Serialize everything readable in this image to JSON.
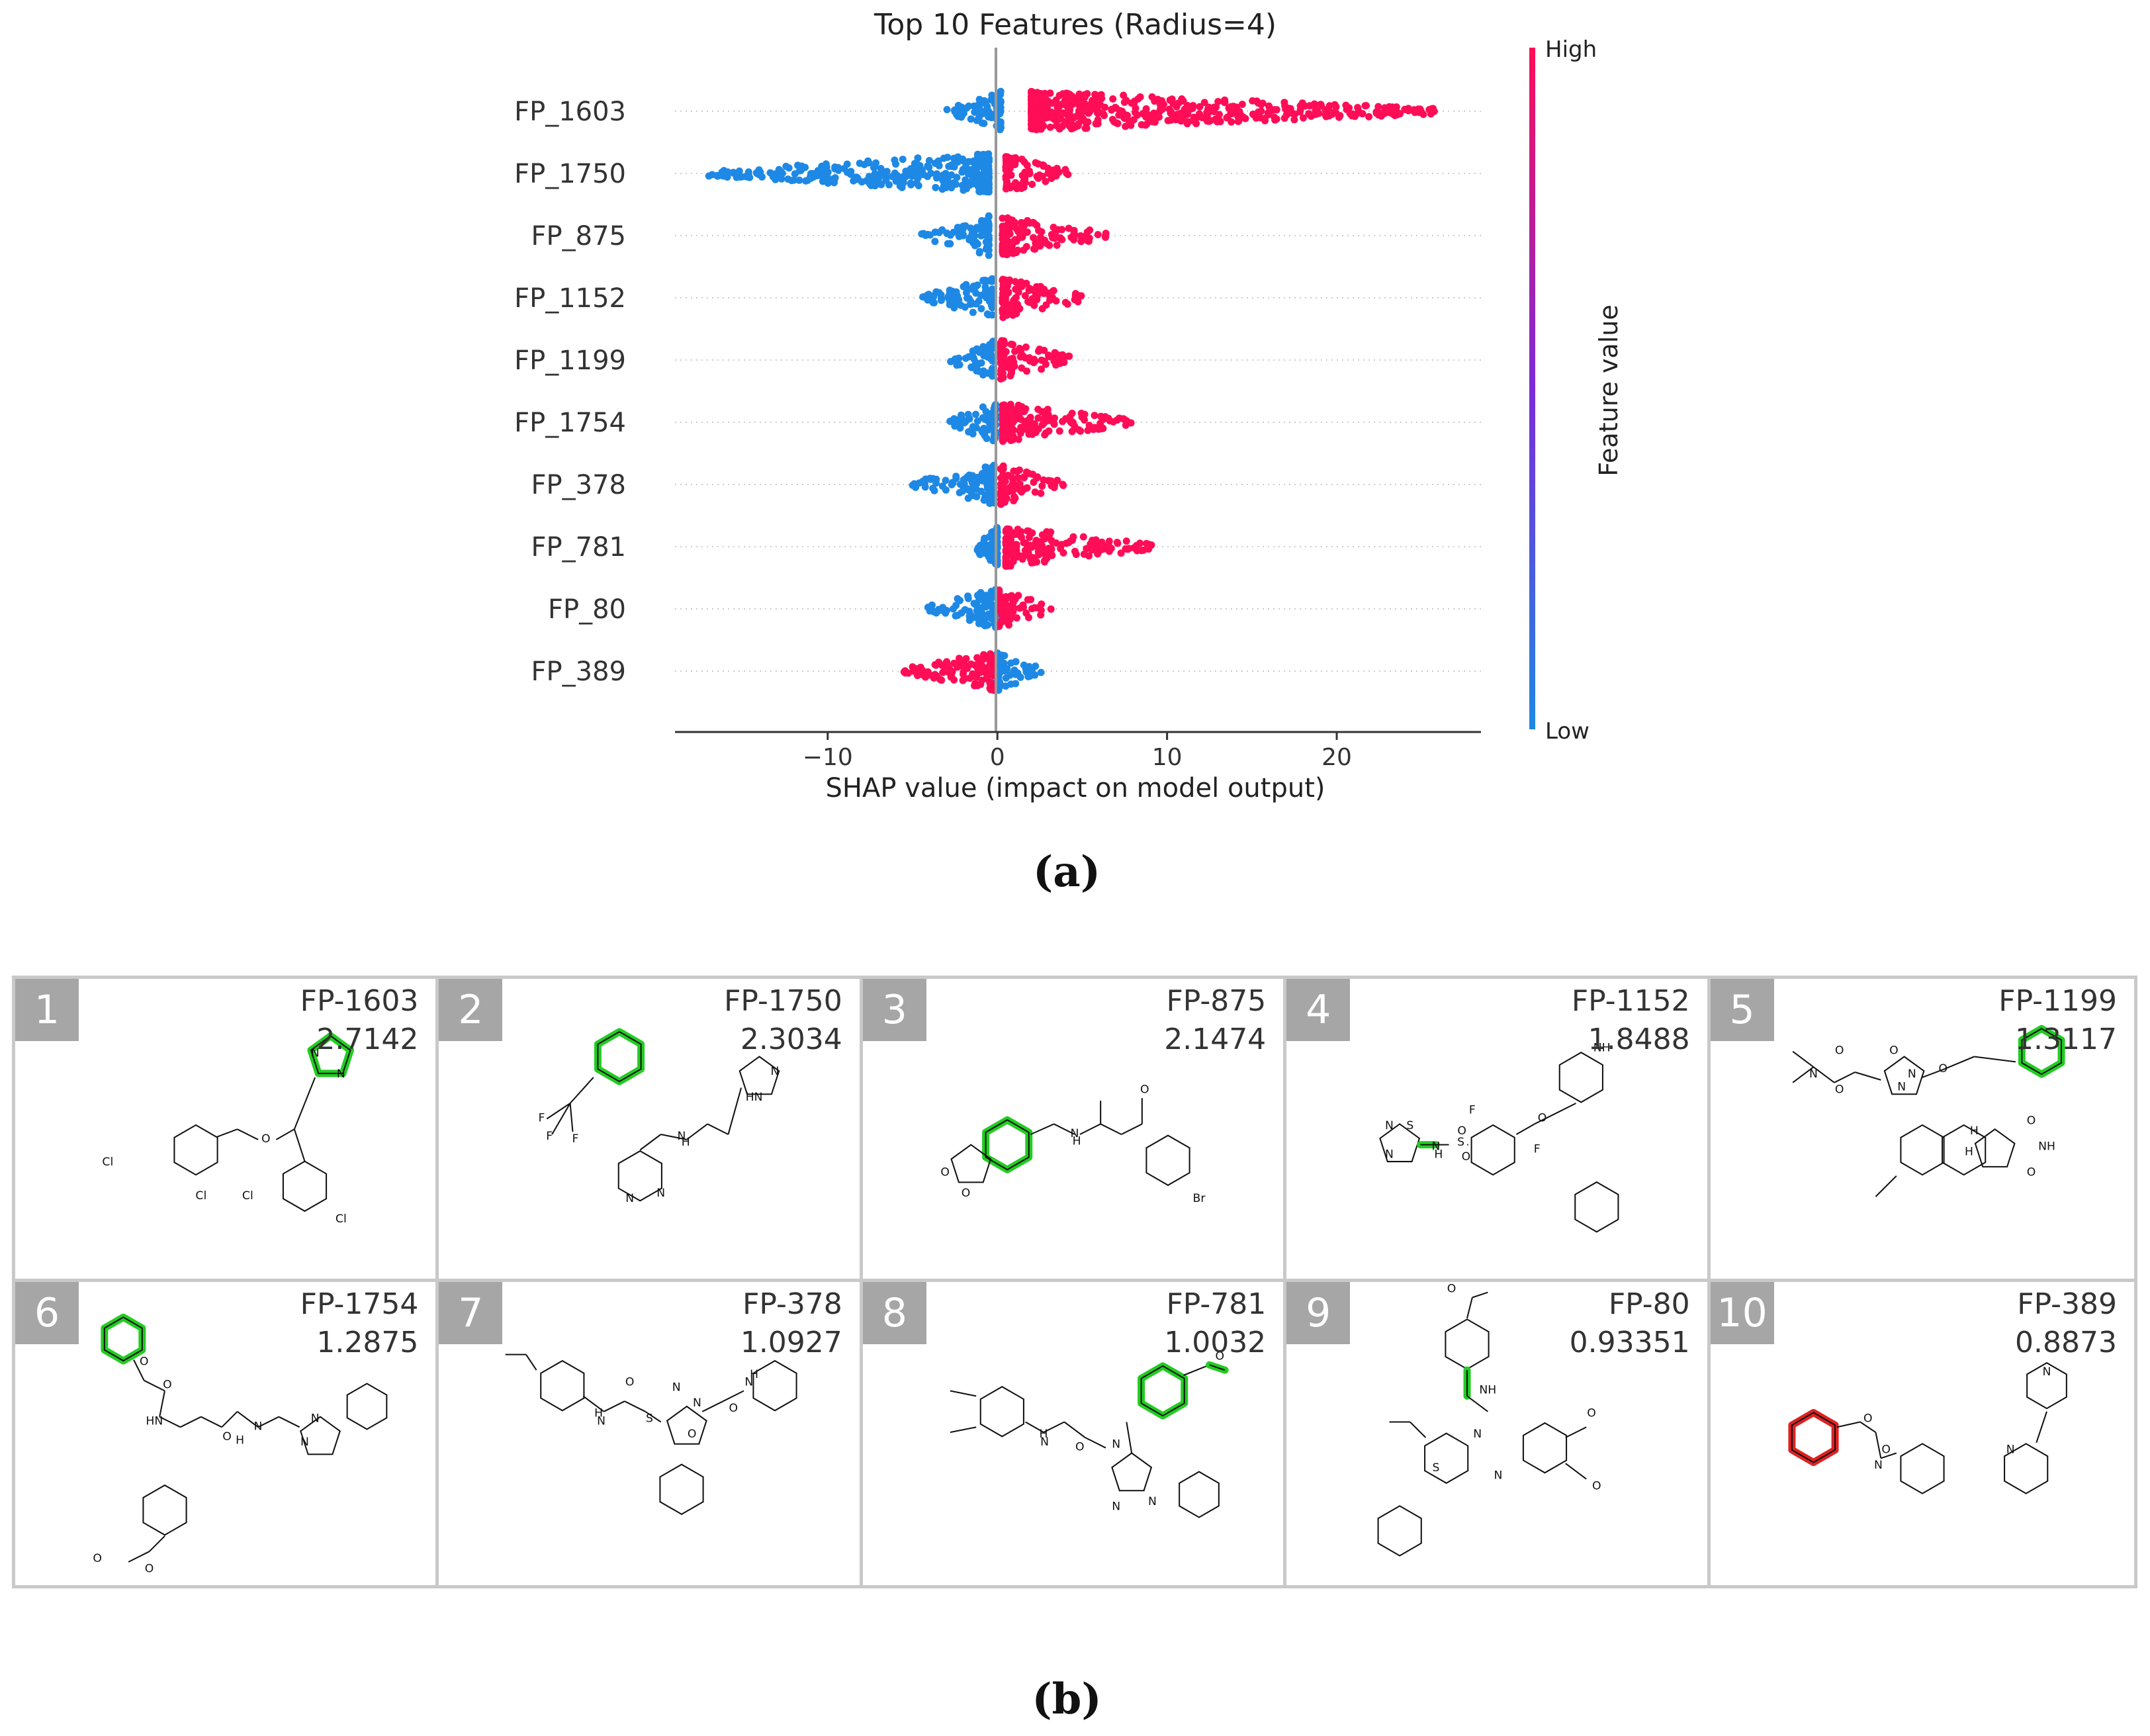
{
  "chart_data": {
    "type": "scatter",
    "subtype": "shap-beeswarm",
    "title": "Top 10 Features (Radius=4)",
    "xlabel": "SHAP value (impact on model output)",
    "xlim": [
      -19,
      28.5
    ],
    "xticks": [
      -10,
      0,
      10,
      20
    ],
    "xtick_labels": [
      "−10",
      "0",
      "10",
      "20"
    ],
    "colorbar": {
      "label": "Feature value",
      "high": "High",
      "low": "Low",
      "high_color": "#ff0d57",
      "low_color": "#1e88e5"
    },
    "features": [
      {
        "name": "FP_1603",
        "low_range": [
          -3,
          0.2
        ],
        "high_range": [
          2,
          26.0
        ]
      },
      {
        "name": "FP_1750",
        "low_range": [
          -17,
          -0.5
        ],
        "high_range": [
          0.5,
          4.3
        ]
      },
      {
        "name": "FP_875",
        "low_range": [
          -4.5,
          -0.5
        ],
        "high_range": [
          0.3,
          6.5
        ]
      },
      {
        "name": "FP_1152",
        "low_range": [
          -4.4,
          -0.3
        ],
        "high_range": [
          0.3,
          5.2
        ]
      },
      {
        "name": "FP_1199",
        "low_range": [
          -2.8,
          -0.2
        ],
        "high_range": [
          0.2,
          4.6
        ]
      },
      {
        "name": "FP_1754",
        "low_range": [
          -2.9,
          -0.1
        ],
        "high_range": [
          0.3,
          7.9
        ]
      },
      {
        "name": "FP_378",
        "low_range": [
          -5.0,
          -0.2
        ],
        "high_range": [
          0.2,
          3.9
        ]
      },
      {
        "name": "FP_781",
        "low_range": [
          -1.5,
          0.0
        ],
        "high_range": [
          0.5,
          9.2
        ]
      },
      {
        "name": "FP_80",
        "low_range": [
          -4.3,
          -0.1
        ],
        "high_range": [
          0.1,
          3.2
        ]
      },
      {
        "name": "FP_389",
        "low_range": [
          0.0,
          2.6
        ],
        "high_range": [
          -5.6,
          -0.2
        ]
      }
    ]
  },
  "panel_labels": {
    "a": "(a)",
    "b": "(b)"
  },
  "table": {
    "cells": [
      {
        "rank": "1",
        "name": "FP-1603",
        "score": "2.7142"
      },
      {
        "rank": "2",
        "name": "FP-1750",
        "score": "2.3034"
      },
      {
        "rank": "3",
        "name": "FP-875",
        "score": "2.1474"
      },
      {
        "rank": "4",
        "name": "FP-1152",
        "score": "1.8488"
      },
      {
        "rank": "5",
        "name": "FP-1199",
        "score": "1.3117"
      },
      {
        "rank": "6",
        "name": "FP-1754",
        "score": "1.2875"
      },
      {
        "rank": "7",
        "name": "FP-378",
        "score": "1.0927"
      },
      {
        "rank": "8",
        "name": "FP-781",
        "score": "1.0032"
      },
      {
        "rank": "9",
        "name": "FP-80",
        "score": "0.93351"
      },
      {
        "rank": "10",
        "name": "FP-389",
        "score": "0.8873"
      }
    ],
    "highlight_colors": {
      "positive": "#22cc22",
      "negative": "#dd2222"
    },
    "atom_labels": {
      "m1": [
        "N",
        "N",
        "O",
        "Cl",
        "Cl",
        "Cl",
        "Cl"
      ],
      "m2": [
        "F",
        "F",
        "F",
        "N",
        "N",
        "N",
        "HN",
        "N",
        "H"
      ],
      "m3": [
        "O",
        "O",
        "N",
        "H",
        "O",
        "Br"
      ],
      "m4": [
        "N",
        "S",
        "N",
        "N",
        "H",
        "S",
        "O",
        "O",
        "F",
        "F",
        "O",
        "NH"
      ],
      "m5": [
        "N",
        "O",
        "O",
        "O",
        "N",
        "O",
        "N",
        "H",
        "H",
        "O",
        "NH",
        "O"
      ],
      "m6": [
        "O",
        "O",
        "HN",
        "O",
        "H",
        "N",
        "N",
        "N",
        "O",
        "O"
      ],
      "m7": [
        "H",
        "N",
        "O",
        "S",
        "N",
        "O",
        "N",
        "O",
        "N",
        "H"
      ],
      "m8": [
        "H",
        "N",
        "O",
        "N",
        "N",
        "N",
        "O"
      ],
      "m9": [
        "O",
        "NH",
        "N",
        "S",
        "N",
        "O",
        "O"
      ],
      "m10": [
        "O",
        "O",
        "N",
        "N",
        "N"
      ]
    }
  }
}
